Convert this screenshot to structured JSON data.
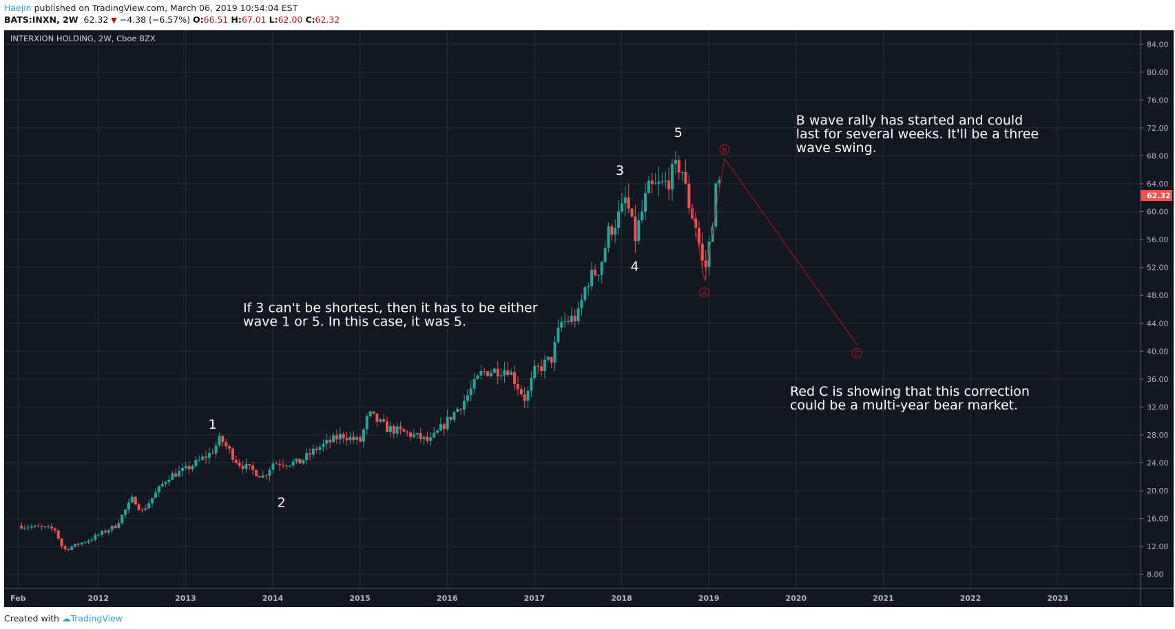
{
  "header": {
    "user": "Haejin",
    "published": "published on TradingView.com, March 06, 2019 10:54:04 EST",
    "symbol": "BATS:INXN, 2W",
    "last": "62.32",
    "change": "−4.38 (−6.57%)",
    "o_label": "O:",
    "o": "66.51",
    "h_label": "H:",
    "h": "67.01",
    "l_label": "L:",
    "l": "62.00",
    "c_label": "C:",
    "c": "62.32"
  },
  "footer": {
    "created": "Created with",
    "brand": "TradingView"
  },
  "chart_data": {
    "type": "candlestick",
    "title": "INTERXION HOLDING, 2W, Cboe BZX",
    "ylim": [
      6,
      86
    ],
    "xlim": [
      2010.92,
      2023.95
    ],
    "y_ticks": [
      "8.00",
      "12.00",
      "16.00",
      "20.00",
      "24.00",
      "28.00",
      "32.00",
      "36.00",
      "40.00",
      "44.00",
      "48.00",
      "52.00",
      "56.00",
      "60.00",
      "64.00",
      "68.00",
      "72.00",
      "76.00",
      "80.00",
      "84.00"
    ],
    "x_ticks": [
      {
        "t": 2011.08,
        "label": "Feb"
      },
      {
        "t": 2012,
        "label": "2012"
      },
      {
        "t": 2013,
        "label": "2013"
      },
      {
        "t": 2014,
        "label": "2014"
      },
      {
        "t": 2015,
        "label": "2015"
      },
      {
        "t": 2016,
        "label": "2016"
      },
      {
        "t": 2017,
        "label": "2017"
      },
      {
        "t": 2018,
        "label": "2018"
      },
      {
        "t": 2019,
        "label": "2019"
      },
      {
        "t": 2020,
        "label": "2020"
      },
      {
        "t": 2021,
        "label": "2021"
      },
      {
        "t": 2022,
        "label": "2022"
      },
      {
        "t": 2023,
        "label": "2023"
      }
    ],
    "last_price": "62.32",
    "price_path": [
      [
        2011.08,
        15
      ],
      [
        2011.5,
        14.5
      ],
      [
        2011.6,
        11.5
      ],
      [
        2011.9,
        13
      ],
      [
        2012.2,
        15
      ],
      [
        2012.4,
        19
      ],
      [
        2012.5,
        17
      ],
      [
        2012.8,
        22
      ],
      [
        2013.0,
        23
      ],
      [
        2013.3,
        25.5
      ],
      [
        2013.4,
        27.5
      ],
      [
        2013.6,
        24
      ],
      [
        2013.9,
        22
      ],
      [
        2014.0,
        24
      ],
      [
        2014.3,
        24
      ],
      [
        2014.5,
        26
      ],
      [
        2014.8,
        28
      ],
      [
        2015.0,
        27
      ],
      [
        2015.1,
        31
      ],
      [
        2015.3,
        29
      ],
      [
        2015.6,
        28
      ],
      [
        2015.8,
        27
      ],
      [
        2016.0,
        30
      ],
      [
        2016.2,
        33
      ],
      [
        2016.4,
        37
      ],
      [
        2016.7,
        37.5
      ],
      [
        2016.9,
        33
      ],
      [
        2017.0,
        37
      ],
      [
        2017.2,
        39
      ],
      [
        2017.3,
        44
      ],
      [
        2017.5,
        45
      ],
      [
        2017.6,
        50
      ],
      [
        2017.75,
        52
      ],
      [
        2017.85,
        57
      ],
      [
        2018.0,
        60
      ],
      [
        2018.05,
        62
      ],
      [
        2018.15,
        56
      ],
      [
        2018.3,
        63
      ],
      [
        2018.5,
        64
      ],
      [
        2018.68,
        67
      ],
      [
        2018.75,
        62
      ],
      [
        2018.85,
        58
      ],
      [
        2018.95,
        51
      ],
      [
        2019.0,
        55
      ],
      [
        2019.1,
        65
      ],
      [
        2019.15,
        62.32
      ]
    ],
    "wave_labels": [
      {
        "text": "1",
        "t": 2013.31,
        "p": 29.6
      },
      {
        "text": "2",
        "t": 2014.1,
        "p": 18.4
      },
      {
        "text": "3",
        "t": 2017.98,
        "p": 66
      },
      {
        "text": "4",
        "t": 2018.15,
        "p": 52.2
      },
      {
        "text": "5",
        "t": 2018.65,
        "p": 71.4
      }
    ],
    "correction_path": [
      [
        2018.8,
        61
      ],
      [
        2018.95,
        50
      ],
      [
        2019.18,
        67.6
      ],
      [
        2020.7,
        40.9
      ]
    ],
    "circle_labels": [
      {
        "text": "A",
        "t": 2018.95,
        "p": 48.4
      },
      {
        "text": "B",
        "t": 2019.18,
        "p": 68.9
      },
      {
        "text": "C",
        "t": 2020.7,
        "p": 39.7
      }
    ],
    "notes": [
      {
        "lines": [
          "If 3 can't be shortest, then it has to be either",
          "wave 1 or 5. In this case, it was 5."
        ],
        "t": 2013.66,
        "p": 45.6
      },
      {
        "lines": [
          "B wave rally has started and could",
          "last for several weeks. It'll be a three",
          "wave swing."
        ],
        "t": 2020.0,
        "p": 72.5
      },
      {
        "lines": [
          "Red C is showing that this correction",
          "could be a multi-year bear market."
        ],
        "t": 2019.93,
        "p": 33.6
      }
    ],
    "colors": {
      "up": "#26a69a",
      "down": "#ef5350",
      "bg": "#131722",
      "grid": "#2a2e39",
      "annot": "#c0141e",
      "price_tag": "#ef5350"
    }
  }
}
